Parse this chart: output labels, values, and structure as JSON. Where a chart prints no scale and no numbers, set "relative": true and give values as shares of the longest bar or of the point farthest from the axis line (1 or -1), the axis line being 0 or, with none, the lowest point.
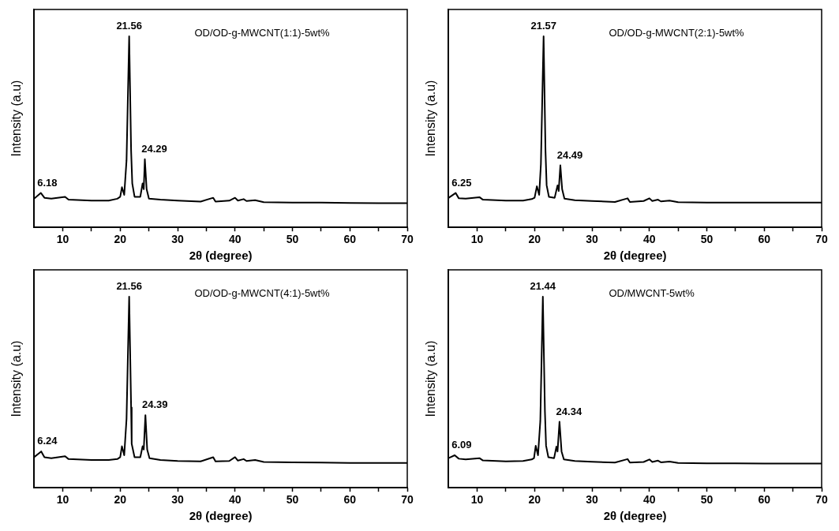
{
  "chart_data": [
    {
      "type": "line",
      "xlabel": "2θ (degree)",
      "ylabel": "Intensity (a.u)",
      "relative": true,
      "marker": "none",
      "color": "#000000",
      "xlim": [
        5,
        70
      ],
      "xticks": [
        10,
        {
          "value": 15,
          "label": null
        },
        20,
        {
          "value": 25,
          "label": null
        },
        30,
        {
          "value": 35,
          "label": null
        },
        40,
        {
          "value": 45,
          "label": null
        },
        50,
        {
          "value": 55,
          "label": null
        },
        60,
        {
          "value": 65,
          "label": null
        },
        70
      ],
      "x": [
        5,
        6.18,
        6.8,
        8,
        10.4,
        11,
        15,
        18,
        19.5,
        20,
        20.3,
        20.7,
        21.1,
        21.56,
        21.9,
        22.1,
        22.5,
        23.5,
        23.9,
        24.1,
        24.29,
        24.6,
        25,
        27,
        30,
        34,
        36.2,
        36.6,
        39,
        40,
        40.5,
        41.5,
        42,
        43.5,
        45,
        50,
        55,
        60,
        65,
        70
      ],
      "values": [
        0.15,
        0.18,
        0.155,
        0.15,
        0.16,
        0.145,
        0.14,
        0.14,
        0.15,
        0.16,
        0.21,
        0.17,
        0.35,
        1,
        0.4,
        0.23,
        0.16,
        0.16,
        0.23,
        0.2,
        0.357,
        0.2,
        0.15,
        0.145,
        0.14,
        0.135,
        0.155,
        0.135,
        0.14,
        0.155,
        0.14,
        0.148,
        0.138,
        0.142,
        0.132,
        0.13,
        0.13,
        0.128,
        0.127,
        0.127
      ],
      "annotations": [
        "OD/OD-g-MWCNT(1:1)-5wt%",
        {
          "text": "21.56",
          "x": 21.56,
          "y": 1
        },
        {
          "text": "24.29",
          "x": 24.29,
          "y": 0.357
        },
        {
          "text": "6.18",
          "x": 6.18,
          "y": 0.18
        }
      ]
    },
    {
      "type": "line",
      "xlabel": "2θ (degree)",
      "ylabel": "Intensity (a.u)",
      "relative": true,
      "marker": "none",
      "color": "#000000",
      "xlim": [
        5,
        70
      ],
      "xticks": [
        10,
        {
          "value": 15,
          "label": null
        },
        20,
        {
          "value": 25,
          "label": null
        },
        30,
        {
          "value": 35,
          "label": null
        },
        40,
        {
          "value": 45,
          "label": null
        },
        50,
        {
          "value": 55,
          "label": null
        },
        60,
        {
          "value": 65,
          "label": null
        },
        70
      ],
      "x": [
        5,
        6.25,
        6.8,
        8,
        10.4,
        11,
        15,
        18,
        19.5,
        20,
        20.4,
        20.8,
        21.1,
        21.57,
        21.9,
        22.1,
        22.5,
        23.5,
        24,
        24.2,
        24.49,
        24.8,
        25.2,
        27,
        30,
        34,
        36.2,
        36.6,
        39,
        40,
        40.5,
        41.5,
        42,
        43.5,
        45,
        50,
        55,
        60,
        65,
        70
      ],
      "values": [
        0.154,
        0.18,
        0.152,
        0.15,
        0.158,
        0.145,
        0.14,
        0.14,
        0.148,
        0.155,
        0.215,
        0.17,
        0.33,
        1,
        0.4,
        0.22,
        0.16,
        0.155,
        0.22,
        0.19,
        0.325,
        0.2,
        0.15,
        0.142,
        0.138,
        0.133,
        0.152,
        0.133,
        0.138,
        0.152,
        0.138,
        0.145,
        0.136,
        0.14,
        0.132,
        0.13,
        0.13,
        0.13,
        0.13,
        0.13
      ],
      "annotations": [
        "OD/OD-g-MWCNT(2:1)-5wt%",
        {
          "text": "21.57",
          "x": 21.57,
          "y": 1
        },
        {
          "text": "24.49",
          "x": 24.49,
          "y": 0.325
        },
        {
          "text": "6.25",
          "x": 6.25,
          "y": 0.18
        }
      ]
    },
    {
      "type": "line",
      "xlabel": "2θ (degree)",
      "ylabel": "Intensity (a.u)",
      "relative": true,
      "marker": "none",
      "color": "#000000",
      "xlim": [
        5,
        70
      ],
      "xticks": [
        10,
        {
          "value": 15,
          "label": null
        },
        20,
        {
          "value": 25,
          "label": null
        },
        30,
        {
          "value": 35,
          "label": null
        },
        40,
        {
          "value": 45,
          "label": null
        },
        50,
        {
          "value": 55,
          "label": null
        },
        60,
        {
          "value": 65,
          "label": null
        },
        70
      ],
      "x": [
        5,
        6.24,
        6.8,
        8,
        10.4,
        11,
        15,
        18,
        19.5,
        20,
        20.3,
        20.7,
        21.1,
        21.56,
        21.9,
        22,
        22.5,
        23.5,
        23.9,
        24.1,
        24.39,
        24.7,
        25.1,
        27,
        30,
        34,
        36.2,
        36.6,
        39,
        40,
        40.5,
        41.5,
        42,
        43.5,
        45,
        50,
        55,
        60,
        65,
        70
      ],
      "values": [
        0.16,
        0.19,
        0.16,
        0.155,
        0.165,
        0.15,
        0.145,
        0.145,
        0.15,
        0.16,
        0.217,
        0.17,
        0.36,
        1,
        0.42,
        0.23,
        0.16,
        0.16,
        0.217,
        0.2,
        0.38,
        0.2,
        0.155,
        0.145,
        0.14,
        0.138,
        0.16,
        0.138,
        0.14,
        0.16,
        0.142,
        0.15,
        0.14,
        0.145,
        0.135,
        0.133,
        0.132,
        0.13,
        0.13,
        0.13
      ],
      "annotations": [
        "OD/OD-g-MWCNT(4:1)-5wt%",
        {
          "text": "21.56",
          "x": 21.56,
          "y": 1
        },
        {
          "text": "24.39",
          "x": 24.39,
          "y": 0.38
        },
        {
          "text": "6.24",
          "x": 6.24,
          "y": 0.19
        }
      ]
    },
    {
      "type": "line",
      "xlabel": "2θ (degree)",
      "ylabel": "Intensity (a.u)",
      "relative": true,
      "marker": "none",
      "color": "#000000",
      "xlim": [
        5,
        70
      ],
      "xticks": [
        10,
        {
          "value": 15,
          "label": null
        },
        20,
        {
          "value": 25,
          "label": null
        },
        30,
        {
          "value": 35,
          "label": null
        },
        40,
        {
          "value": 45,
          "label": null
        },
        50,
        {
          "value": 55,
          "label": null
        },
        60,
        {
          "value": 65,
          "label": null
        },
        70
      ],
      "x": [
        5,
        6.09,
        6.8,
        8,
        10.4,
        11,
        15,
        18,
        19.5,
        19.9,
        20.2,
        20.6,
        21,
        21.44,
        21.8,
        22,
        22.4,
        23.4,
        23.8,
        24,
        24.34,
        24.7,
        25.1,
        27,
        30,
        34,
        36.2,
        36.6,
        39,
        40,
        40.5,
        41.5,
        42,
        43.5,
        45,
        50,
        55,
        60,
        65,
        70
      ],
      "values": [
        0.155,
        0.17,
        0.152,
        0.148,
        0.155,
        0.143,
        0.138,
        0.14,
        0.148,
        0.155,
        0.22,
        0.17,
        0.35,
        1,
        0.4,
        0.22,
        0.16,
        0.155,
        0.215,
        0.19,
        0.345,
        0.19,
        0.148,
        0.14,
        0.136,
        0.132,
        0.15,
        0.132,
        0.135,
        0.148,
        0.135,
        0.142,
        0.133,
        0.137,
        0.13,
        0.128,
        0.128,
        0.127,
        0.127,
        0.127
      ],
      "annotations": [
        "OD/MWCNT-5wt%",
        {
          "text": "21.44",
          "x": 21.44,
          "y": 1
        },
        {
          "text": "24.34",
          "x": 24.34,
          "y": 0.345
        },
        {
          "text": "6.09",
          "x": 6.09,
          "y": 0.17
        }
      ]
    }
  ]
}
